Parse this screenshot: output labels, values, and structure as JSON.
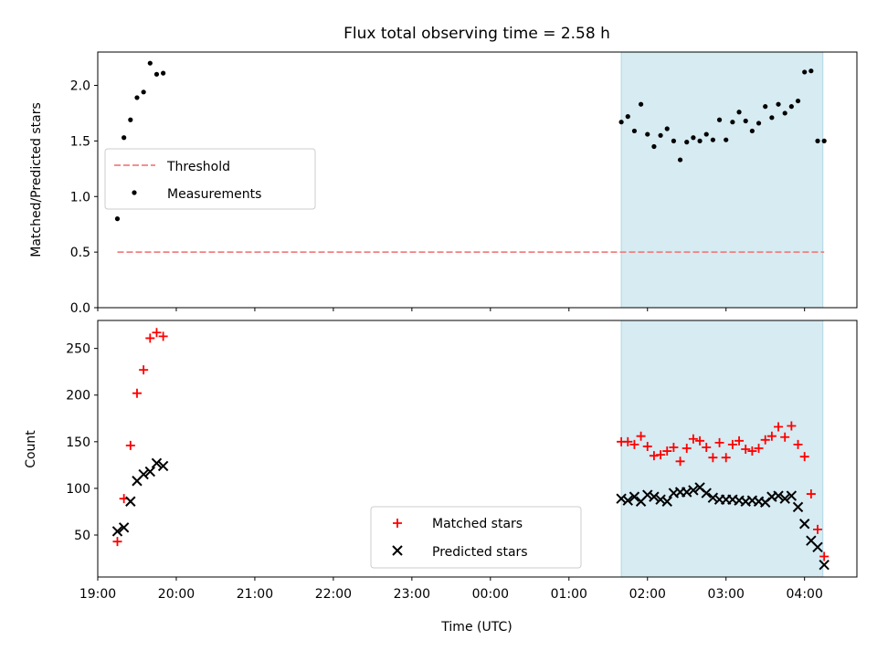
{
  "title": "Flux total observing time = 2.58 h",
  "xlabel": "Time (UTC)",
  "colors": {
    "threshold": "#f08080",
    "measurements": "#000000",
    "matched": "#ff0000",
    "predicted": "#000000",
    "observing_span": "#add8e6"
  },
  "chart_data": [
    {
      "type": "scatter",
      "panel": "top",
      "ylabel": "Matched/Predicted stars",
      "xlim": [
        "19:00",
        "04:40"
      ],
      "ylim": [
        0,
        2.3
      ],
      "yticks": [
        "0.0",
        "0.5",
        "1.0",
        "1.5",
        "2.0"
      ],
      "shaded_span": [
        "01:40",
        "04:14"
      ],
      "legend": {
        "placement": "center-left",
        "entries": [
          "Threshold",
          "Measurements"
        ]
      },
      "series": [
        {
          "name": "Threshold",
          "kind": "line",
          "style": "dashed",
          "points": [
            [
              "19:15",
              0.5
            ],
            [
              "04:15",
              0.5
            ]
          ]
        },
        {
          "name": "Measurements",
          "kind": "scatter",
          "points": [
            [
              "19:15",
              0.8
            ],
            [
              "19:20",
              1.53
            ],
            [
              "19:25",
              1.69
            ],
            [
              "19:30",
              1.89
            ],
            [
              "19:35",
              1.94
            ],
            [
              "19:40",
              2.2
            ],
            [
              "19:45",
              2.1
            ],
            [
              "19:50",
              2.11
            ],
            [
              "01:40",
              1.67
            ],
            [
              "01:45",
              1.72
            ],
            [
              "01:50",
              1.59
            ],
            [
              "01:55",
              1.83
            ],
            [
              "02:00",
              1.56
            ],
            [
              "02:05",
              1.45
            ],
            [
              "02:10",
              1.55
            ],
            [
              "02:15",
              1.61
            ],
            [
              "02:20",
              1.5
            ],
            [
              "02:25",
              1.33
            ],
            [
              "02:30",
              1.49
            ],
            [
              "02:35",
              1.53
            ],
            [
              "02:40",
              1.5
            ],
            [
              "02:45",
              1.56
            ],
            [
              "02:50",
              1.51
            ],
            [
              "02:55",
              1.69
            ],
            [
              "03:00",
              1.51
            ],
            [
              "03:05",
              1.67
            ],
            [
              "03:10",
              1.76
            ],
            [
              "03:15",
              1.68
            ],
            [
              "03:20",
              1.59
            ],
            [
              "03:25",
              1.66
            ],
            [
              "03:30",
              1.81
            ],
            [
              "03:35",
              1.71
            ],
            [
              "03:40",
              1.83
            ],
            [
              "03:45",
              1.75
            ],
            [
              "03:50",
              1.81
            ],
            [
              "03:55",
              1.86
            ],
            [
              "04:00",
              2.12
            ],
            [
              "04:05",
              2.13
            ],
            [
              "04:10",
              1.5
            ],
            [
              "04:15",
              1.5
            ]
          ]
        }
      ]
    },
    {
      "type": "scatter",
      "panel": "bottom",
      "ylabel": "Count",
      "xlim": [
        "19:00",
        "04:40"
      ],
      "ylim": [
        5,
        280
      ],
      "yticks": [
        "50",
        "100",
        "150",
        "200",
        "250"
      ],
      "xticks": [
        "19:00",
        "20:00",
        "21:00",
        "22:00",
        "23:00",
        "00:00",
        "01:00",
        "02:00",
        "03:00",
        "04:00"
      ],
      "shaded_span": [
        "01:40",
        "04:14"
      ],
      "legend": {
        "placement": "lower-center",
        "entries": [
          "Matched stars",
          "Predicted stars"
        ]
      },
      "series": [
        {
          "name": "Matched stars",
          "marker": "+",
          "points": [
            [
              "19:15",
              43
            ],
            [
              "19:20",
              89
            ],
            [
              "19:25",
              146
            ],
            [
              "19:30",
              202
            ],
            [
              "19:35",
              227
            ],
            [
              "19:40",
              261
            ],
            [
              "19:45",
              267
            ],
            [
              "19:50",
              263
            ],
            [
              "01:40",
              150
            ],
            [
              "01:45",
              150
            ],
            [
              "01:50",
              147
            ],
            [
              "01:55",
              156
            ],
            [
              "02:00",
              145
            ],
            [
              "02:05",
              135
            ],
            [
              "02:10",
              136
            ],
            [
              "02:15",
              140
            ],
            [
              "02:20",
              144
            ],
            [
              "02:25",
              129
            ],
            [
              "02:30",
              143
            ],
            [
              "02:35",
              153
            ],
            [
              "02:40",
              151
            ],
            [
              "02:45",
              144
            ],
            [
              "02:50",
              133
            ],
            [
              "02:55",
              149
            ],
            [
              "03:00",
              133
            ],
            [
              "03:05",
              147
            ],
            [
              "03:10",
              151
            ],
            [
              "03:15",
              142
            ],
            [
              "03:20",
              140
            ],
            [
              "03:25",
              143
            ],
            [
              "03:30",
              152
            ],
            [
              "03:35",
              156
            ],
            [
              "03:40",
              166
            ],
            [
              "03:45",
              155
            ],
            [
              "03:50",
              167
            ],
            [
              "03:55",
              147
            ],
            [
              "04:00",
              134
            ],
            [
              "04:05",
              94
            ],
            [
              "04:10",
              56
            ],
            [
              "04:15",
              27
            ]
          ]
        },
        {
          "name": "Predicted stars",
          "marker": "x",
          "points": [
            [
              "19:15",
              54
            ],
            [
              "19:20",
              58
            ],
            [
              "19:25",
              86
            ],
            [
              "19:30",
              108
            ],
            [
              "19:35",
              115
            ],
            [
              "19:40",
              118
            ],
            [
              "19:45",
              127
            ],
            [
              "19:50",
              124
            ],
            [
              "01:40",
              89
            ],
            [
              "01:45",
              87
            ],
            [
              "01:50",
              91
            ],
            [
              "01:55",
              86
            ],
            [
              "02:00",
              93
            ],
            [
              "02:05",
              91
            ],
            [
              "02:10",
              88
            ],
            [
              "02:15",
              86
            ],
            [
              "02:20",
              95
            ],
            [
              "02:25",
              96
            ],
            [
              "02:30",
              96
            ],
            [
              "02:35",
              98
            ],
            [
              "02:40",
              101
            ],
            [
              "02:45",
              95
            ],
            [
              "02:50",
              90
            ],
            [
              "02:55",
              88
            ],
            [
              "03:00",
              88
            ],
            [
              "03:05",
              88
            ],
            [
              "03:10",
              87
            ],
            [
              "03:15",
              86
            ],
            [
              "03:20",
              87
            ],
            [
              "03:25",
              86
            ],
            [
              "03:30",
              85
            ],
            [
              "03:35",
              91
            ],
            [
              "03:40",
              92
            ],
            [
              "03:45",
              89
            ],
            [
              "03:50",
              92
            ],
            [
              "03:55",
              80
            ],
            [
              "04:00",
              62
            ],
            [
              "04:05",
              44
            ],
            [
              "04:10",
              37
            ],
            [
              "04:15",
              18
            ]
          ]
        }
      ]
    }
  ]
}
